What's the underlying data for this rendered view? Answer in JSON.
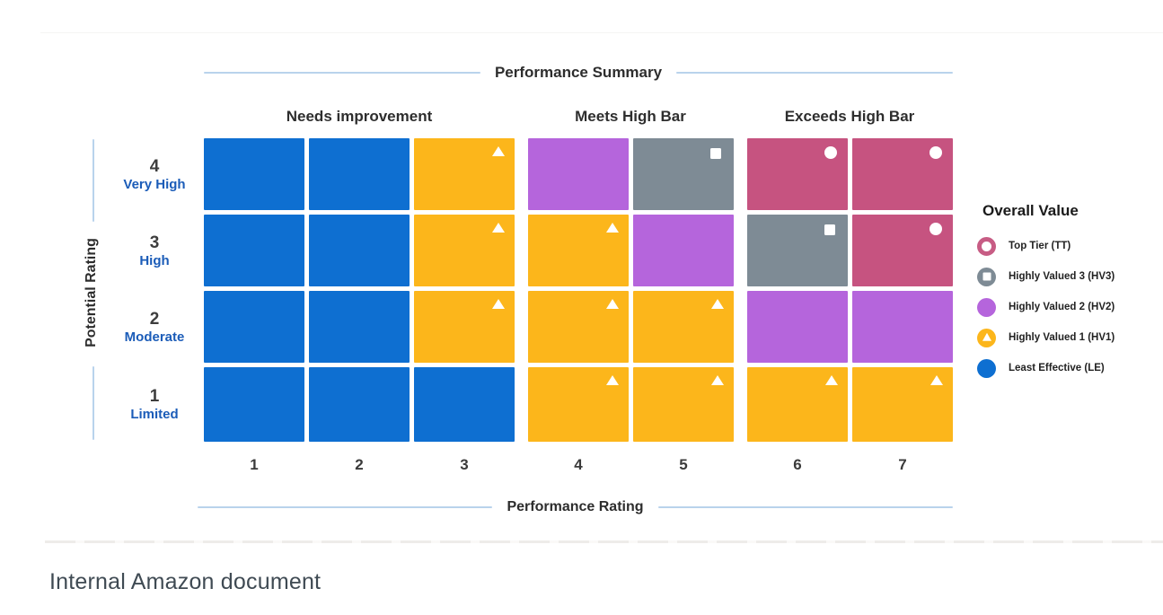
{
  "title": "Performance Summary",
  "caption": "Internal Amazon document",
  "x_axis": {
    "label": "Performance Rating",
    "ticks": [
      "1",
      "2",
      "3",
      "4",
      "5",
      "6",
      "7"
    ]
  },
  "y_axis": {
    "label": "Potential Rating"
  },
  "column_groups": [
    {
      "label": "Needs improvement",
      "columns": [
        1,
        2,
        3
      ]
    },
    {
      "label": "Meets High Bar",
      "columns": [
        4,
        5
      ]
    },
    {
      "label": "Exceeds High Bar",
      "columns": [
        6,
        7
      ]
    }
  ],
  "rows": [
    {
      "rating": "4",
      "label": "Very High",
      "cells": [
        "LE",
        "LE",
        "HV1",
        "HV2",
        "HV3",
        "TT",
        "TT"
      ]
    },
    {
      "rating": "3",
      "label": "High",
      "cells": [
        "LE",
        "LE",
        "HV1",
        "HV1",
        "HV2",
        "HV3",
        "TT"
      ]
    },
    {
      "rating": "2",
      "label": "Moderate",
      "cells": [
        "LE",
        "LE",
        "HV1",
        "HV1",
        "HV1",
        "HV2",
        "HV2"
      ]
    },
    {
      "rating": "1",
      "label": "Limited",
      "cells": [
        "LE",
        "LE",
        "LE",
        "HV1",
        "HV1",
        "HV1",
        "HV1"
      ]
    }
  ],
  "tiers": {
    "TT": {
      "name": "Top Tier",
      "color": "#c65380",
      "marker": "circle"
    },
    "HV3": {
      "name": "Highly Valued 3",
      "color": "#7e8b95",
      "marker": "square"
    },
    "HV2": {
      "name": "Highly Valued 2",
      "color": "#b565dc",
      "marker": "none"
    },
    "HV1": {
      "name": "Highly Valued 1",
      "color": "#fcb61b",
      "marker": "triangle"
    },
    "LE": {
      "name": "Least Effective",
      "color": "#0e6fd1",
      "marker": "none"
    }
  },
  "legend": {
    "title": "Overall Value",
    "items": [
      {
        "id": "TT",
        "label": "Top Tier (TT)",
        "color": "#c75c84",
        "icon": "ring"
      },
      {
        "id": "HV3",
        "label": "Highly Valued 3 (HV3)",
        "color": "#7e8b95",
        "icon": "square-in-circle"
      },
      {
        "id": "HV2",
        "label": "Highly Valued 2 (HV2)",
        "color": "#b565dc",
        "icon": "circle"
      },
      {
        "id": "HV1",
        "label": "Highly Valued 1 (HV1)",
        "color": "#fcb61b",
        "icon": "triangle-in-circle"
      },
      {
        "id": "LE",
        "label": "Least Effective (LE)",
        "color": "#0e6fd1",
        "icon": "circle"
      }
    ]
  },
  "chart_data": {
    "type": "heatmap",
    "title": "Performance Summary",
    "xlabel": "Performance Rating",
    "ylabel": "Potential Rating",
    "x": [
      1,
      2,
      3,
      4,
      5,
      6,
      7
    ],
    "y": [
      {
        "rating": 4,
        "label": "Very High"
      },
      {
        "rating": 3,
        "label": "High"
      },
      {
        "rating": 2,
        "label": "Moderate"
      },
      {
        "rating": 1,
        "label": "Limited"
      }
    ],
    "column_groups": [
      {
        "label": "Needs improvement",
        "x": [
          1,
          2,
          3
        ]
      },
      {
        "label": "Meets High Bar",
        "x": [
          4,
          5
        ]
      },
      {
        "label": "Exceeds High Bar",
        "x": [
          6,
          7
        ]
      }
    ],
    "values": [
      [
        "LE",
        "LE",
        "HV1",
        "HV2",
        "HV3",
        "TT",
        "TT"
      ],
      [
        "LE",
        "LE",
        "HV1",
        "HV1",
        "HV2",
        "HV3",
        "TT"
      ],
      [
        "LE",
        "LE",
        "HV1",
        "HV1",
        "HV1",
        "HV2",
        "HV2"
      ],
      [
        "LE",
        "LE",
        "LE",
        "HV1",
        "HV1",
        "HV1",
        "HV1"
      ]
    ],
    "cell_markers": {
      "TT": "circle",
      "HV3": "square",
      "HV1": "triangle",
      "HV2": "none",
      "LE": "none"
    },
    "value_legend": {
      "TT": "Top Tier (TT)",
      "HV3": "Highly Valued 3 (HV3)",
      "HV2": "Highly Valued 2 (HV2)",
      "HV1": "Highly Valued 1 (HV1)",
      "LE": "Least Effective (LE)"
    },
    "legend_position": "right",
    "grid": false
  }
}
